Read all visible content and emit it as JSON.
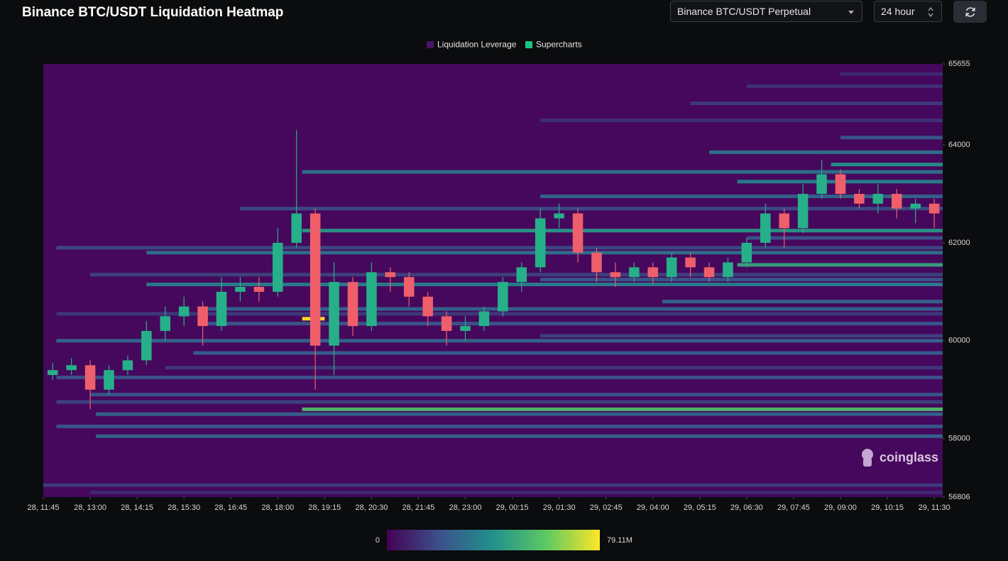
{
  "header": {
    "title": "Binance BTC/USDT Liquidation Heatmap",
    "exchange_select": "Binance BTC/USDT Perpetual",
    "period_select": "24 hour"
  },
  "chart_data": {
    "type": "candlestick-heatmap",
    "watermark": "coinglass",
    "legend": [
      {
        "name": "Liquidation Leverage",
        "color": "#4b1369"
      },
      {
        "name": "Supercharts",
        "color": "#16c784"
      }
    ],
    "background": "#46085c",
    "up_color": "#26b08a",
    "down_color": "#ef5f6b",
    "xlim": [
      0,
      47.95
    ],
    "xticks": [
      {
        "value": 0,
        "label": "28, 11:45"
      },
      {
        "value": 2.5,
        "label": "28, 13:00"
      },
      {
        "value": 5,
        "label": "28, 14:15"
      },
      {
        "value": 7.5,
        "label": "28, 15:30"
      },
      {
        "value": 10,
        "label": "28, 16:45"
      },
      {
        "value": 12.5,
        "label": "28, 18:00"
      },
      {
        "value": 15,
        "label": "28, 19:15"
      },
      {
        "value": 17.5,
        "label": "28, 20:30"
      },
      {
        "value": 20,
        "label": "28, 21:45"
      },
      {
        "value": 22.5,
        "label": "28, 23:00"
      },
      {
        "value": 25,
        "label": "29, 00:15"
      },
      {
        "value": 27.5,
        "label": "29, 01:30"
      },
      {
        "value": 30,
        "label": "29, 02:45"
      },
      {
        "value": 32.5,
        "label": "29, 04:00"
      },
      {
        "value": 35,
        "label": "29, 05:15"
      },
      {
        "value": 37.5,
        "label": "29, 06:30"
      },
      {
        "value": 40,
        "label": "29, 07:45"
      },
      {
        "value": 42.5,
        "label": "29, 09:00"
      },
      {
        "value": 45,
        "label": "29, 10:15"
      },
      {
        "value": 47.5,
        "label": "29, 11:30"
      }
    ],
    "ylim": [
      56806,
      65655
    ],
    "yticks": [
      56806,
      58000,
      60000,
      62000,
      64000,
      65655
    ],
    "candles": {
      "open": [
        59300,
        59400,
        59500,
        59000,
        59400,
        59600,
        60200,
        60500,
        60700,
        60300,
        61000,
        61100,
        61000,
        62000,
        62600,
        59900,
        61200,
        60300,
        61400,
        61300,
        60900,
        60500,
        60200,
        60300,
        60600,
        61200,
        61500,
        62500,
        62600,
        61800,
        61400,
        61300,
        61500,
        61300,
        61700,
        61500,
        61300,
        61600,
        62000,
        62600,
        62300,
        63000,
        63400,
        63000,
        62800,
        63000,
        62700,
        62800
      ],
      "high": [
        59550,
        59650,
        59600,
        59500,
        59700,
        60400,
        60700,
        60900,
        60800,
        61300,
        61300,
        61300,
        62300,
        64300,
        62700,
        61600,
        61300,
        61600,
        61500,
        61400,
        61000,
        60600,
        60500,
        60700,
        61300,
        61600,
        62700,
        62800,
        62700,
        61900,
        61600,
        61600,
        61600,
        61800,
        61800,
        61600,
        61700,
        62100,
        62800,
        62700,
        63200,
        63700,
        63500,
        63100,
        63200,
        63100,
        62900,
        62900
      ],
      "low": [
        59200,
        59300,
        58600,
        58900,
        59300,
        59500,
        60000,
        60300,
        59900,
        60200,
        60800,
        60800,
        60900,
        61900,
        59000,
        59300,
        60100,
        60200,
        61000,
        60700,
        60300,
        59900,
        60000,
        60200,
        60500,
        61000,
        61400,
        62300,
        61600,
        61200,
        61100,
        61200,
        61150,
        61200,
        61300,
        61200,
        61200,
        61500,
        61900,
        61900,
        62200,
        62900,
        62900,
        62700,
        62600,
        62500,
        62400,
        62300
      ],
      "close": [
        59400,
        59500,
        59000,
        59400,
        59600,
        60200,
        60500,
        60700,
        60300,
        61000,
        61100,
        61000,
        62000,
        62600,
        59900,
        61200,
        60300,
        61400,
        61300,
        60900,
        60500,
        60200,
        60300,
        60600,
        61200,
        61500,
        62500,
        62600,
        61800,
        61400,
        61300,
        61500,
        61300,
        61700,
        61500,
        61300,
        61600,
        62000,
        62600,
        62300,
        63000,
        63400,
        63000,
        62800,
        63000,
        62700,
        62800,
        62600
      ]
    },
    "levels": [
      {
        "price": 65450,
        "start": 42.5,
        "value": 10
      },
      {
        "price": 65200,
        "start": 37.5,
        "value": 12
      },
      {
        "price": 64850,
        "start": 34.5,
        "value": 14
      },
      {
        "price": 64500,
        "start": 26.5,
        "value": 12
      },
      {
        "price": 64150,
        "start": 42.5,
        "value": 22
      },
      {
        "price": 63850,
        "start": 35.5,
        "value": 30
      },
      {
        "price": 63600,
        "start": 42,
        "value": 40
      },
      {
        "price": 63450,
        "start": 13.8,
        "value": 30
      },
      {
        "price": 63250,
        "start": 37,
        "value": 35
      },
      {
        "price": 62950,
        "start": 26.5,
        "value": 26
      },
      {
        "price": 62700,
        "start": 10.5,
        "value": 18
      },
      {
        "price": 62250,
        "start": 13.8,
        "value": 42
      },
      {
        "price": 62100,
        "start": 37.5,
        "value": 20
      },
      {
        "price": 61900,
        "start": 0.7,
        "value": 18
      },
      {
        "price": 61800,
        "start": 5.5,
        "value": 30
      },
      {
        "price": 61550,
        "start": 37,
        "value": 46
      },
      {
        "price": 61350,
        "start": 2.5,
        "value": 16
      },
      {
        "price": 61250,
        "start": 26.5,
        "value": 22
      },
      {
        "price": 61150,
        "start": 5.5,
        "value": 34
      },
      {
        "price": 60800,
        "start": 33,
        "value": 26
      },
      {
        "price": 60650,
        "start": 8.5,
        "value": 26
      },
      {
        "price": 60550,
        "start": 0.7,
        "value": 14
      },
      {
        "price": 60450,
        "start": 13.8,
        "end": 15,
        "value": 79
      },
      {
        "price": 60350,
        "start": 8.5,
        "value": 22
      },
      {
        "price": 60100,
        "start": 26.5,
        "value": 16
      },
      {
        "price": 60000,
        "start": 0.7,
        "value": 26
      },
      {
        "price": 59750,
        "start": 8,
        "value": 24
      },
      {
        "price": 59450,
        "start": 6.5,
        "value": 14
      },
      {
        "price": 59250,
        "start": 0.7,
        "value": 20
      },
      {
        "price": 58900,
        "start": 2.5,
        "value": 22
      },
      {
        "price": 58750,
        "start": 0.7,
        "value": 16
      },
      {
        "price": 58600,
        "start": 13.8,
        "value": 55
      },
      {
        "price": 58500,
        "start": 2.8,
        "value": 25
      },
      {
        "price": 58250,
        "start": 0.7,
        "value": 22
      },
      {
        "price": 58050,
        "start": 2.8,
        "value": 26
      },
      {
        "price": 57050,
        "start": 0,
        "value": 15
      },
      {
        "price": 56900,
        "start": 2.5,
        "value": 10
      }
    ],
    "colorscale": [
      "#440154",
      "#3b528b",
      "#21918c",
      "#5ec962",
      "#fde725"
    ],
    "colorbar": {
      "min": 0,
      "max": {
        "value": 79.11,
        "label": "79.11M"
      }
    }
  }
}
